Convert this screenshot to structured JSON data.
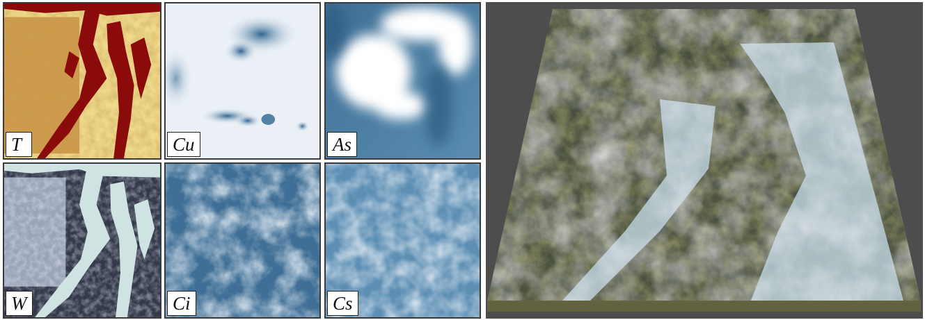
{
  "panels": {
    "t": {
      "label": "T"
    },
    "cu": {
      "label": "Cu"
    },
    "as": {
      "label": "As"
    },
    "w": {
      "label": "W"
    },
    "ci": {
      "label": "Ci"
    },
    "cs": {
      "label": "Cs"
    }
  },
  "colors": {
    "terrain_land": "#e8cf7a",
    "terrain_water": "#8b0a0a",
    "cloud_light": "#eaf0f6",
    "cloud_dark": "#3f6f96",
    "water_mask": "#cfe3e3",
    "render_bg": "#4d4d4d"
  }
}
